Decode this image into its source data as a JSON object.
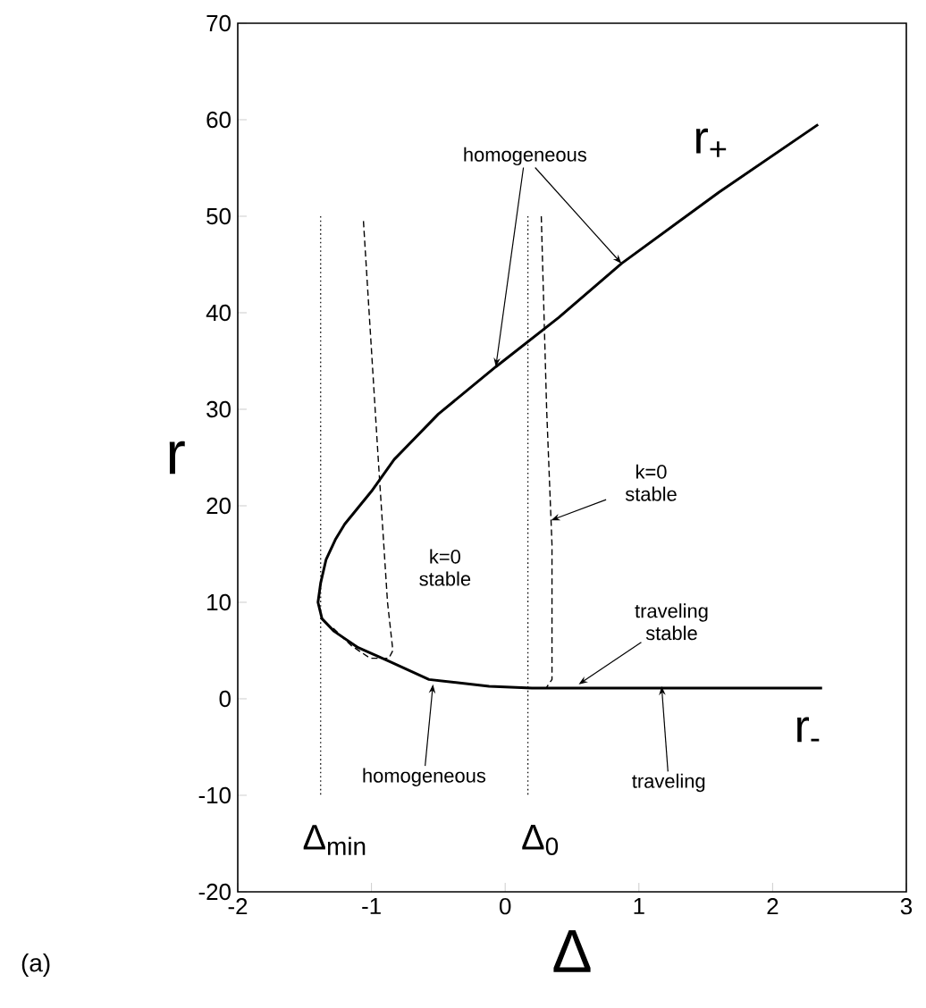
{
  "chart_data": {
    "type": "line",
    "xlabel": "Δ",
    "ylabel": "r",
    "xlim": [
      -2,
      3
    ],
    "ylim": [
      -20,
      70
    ],
    "xticks": [
      -2,
      -1,
      0,
      1,
      2,
      3
    ],
    "yticks": [
      -20,
      -10,
      0,
      10,
      20,
      30,
      40,
      50,
      60,
      70
    ],
    "series": [
      {
        "color": "#000000",
        "line_style": "solid",
        "x": [
          2.34,
          1.6,
          0.87,
          0.4,
          -0.07,
          -0.5,
          -0.83,
          -1.0,
          -1.2,
          -1.27,
          -1.34,
          -1.38,
          -1.4,
          -1.37,
          -1.28,
          -1.1,
          -0.87,
          -0.57,
          -0.12,
          0.2,
          2.37
        ],
        "values": [
          59.5,
          52.5,
          45.1,
          39.5,
          34.4,
          29.5,
          24.8,
          21.5,
          18.1,
          16.5,
          14.4,
          12,
          10,
          8.3,
          7,
          5.3,
          3.9,
          2,
          1.3,
          1.1,
          1.1
        ]
      },
      {
        "color": "#000000",
        "line_style": "dashed",
        "x": [
          -1.06,
          -0.95,
          -0.88,
          -0.84,
          -0.87,
          -1.01,
          -1.15,
          -1.3
        ],
        "values": [
          49.5,
          25,
          10,
          5,
          4.2,
          4.2,
          5.5,
          7.5
        ]
      },
      {
        "color": "#000000",
        "line_style": "dashed",
        "x": [
          0.27,
          0.31,
          0.35,
          0.35,
          0.31
        ],
        "values": [
          50,
          30,
          16,
          2,
          1.2
        ]
      },
      {
        "color": "#000000",
        "line_style": "dotted",
        "x": [
          -1.38,
          -1.38
        ],
        "values": [
          50,
          -10
        ]
      },
      {
        "color": "#000000",
        "line_style": "dotted",
        "x": [
          0.17,
          0.17
        ],
        "values": [
          50,
          -10
        ]
      }
    ],
    "annotations": [
      {
        "text": "homogeneous",
        "x": 0.87,
        "y": 45.1
      },
      {
        "text": "k=0 stable",
        "x": 0.343,
        "y": 18.5
      },
      "k=0 stable",
      {
        "text": "traveling stable",
        "x": 0.55,
        "y": 1.5
      },
      {
        "text": "homogeneous",
        "x": -0.54,
        "y": 1.5
      },
      {
        "text": "traveling",
        "x": 1.17,
        "y": 1.3
      },
      {
        "text": "r$_{+}$",
        "x": 2.34,
        "y": 59.5
      },
      {
        "text": "r$_{-}$",
        "x": 2.37,
        "y": 1.1
      },
      {
        "text": "Δ$_{min}$",
        "x": -1.38,
        "y": -10
      },
      {
        "text": "Δ$_{0}$",
        "x": 0.17,
        "y": -10
      },
      "(a)"
    ]
  }
}
